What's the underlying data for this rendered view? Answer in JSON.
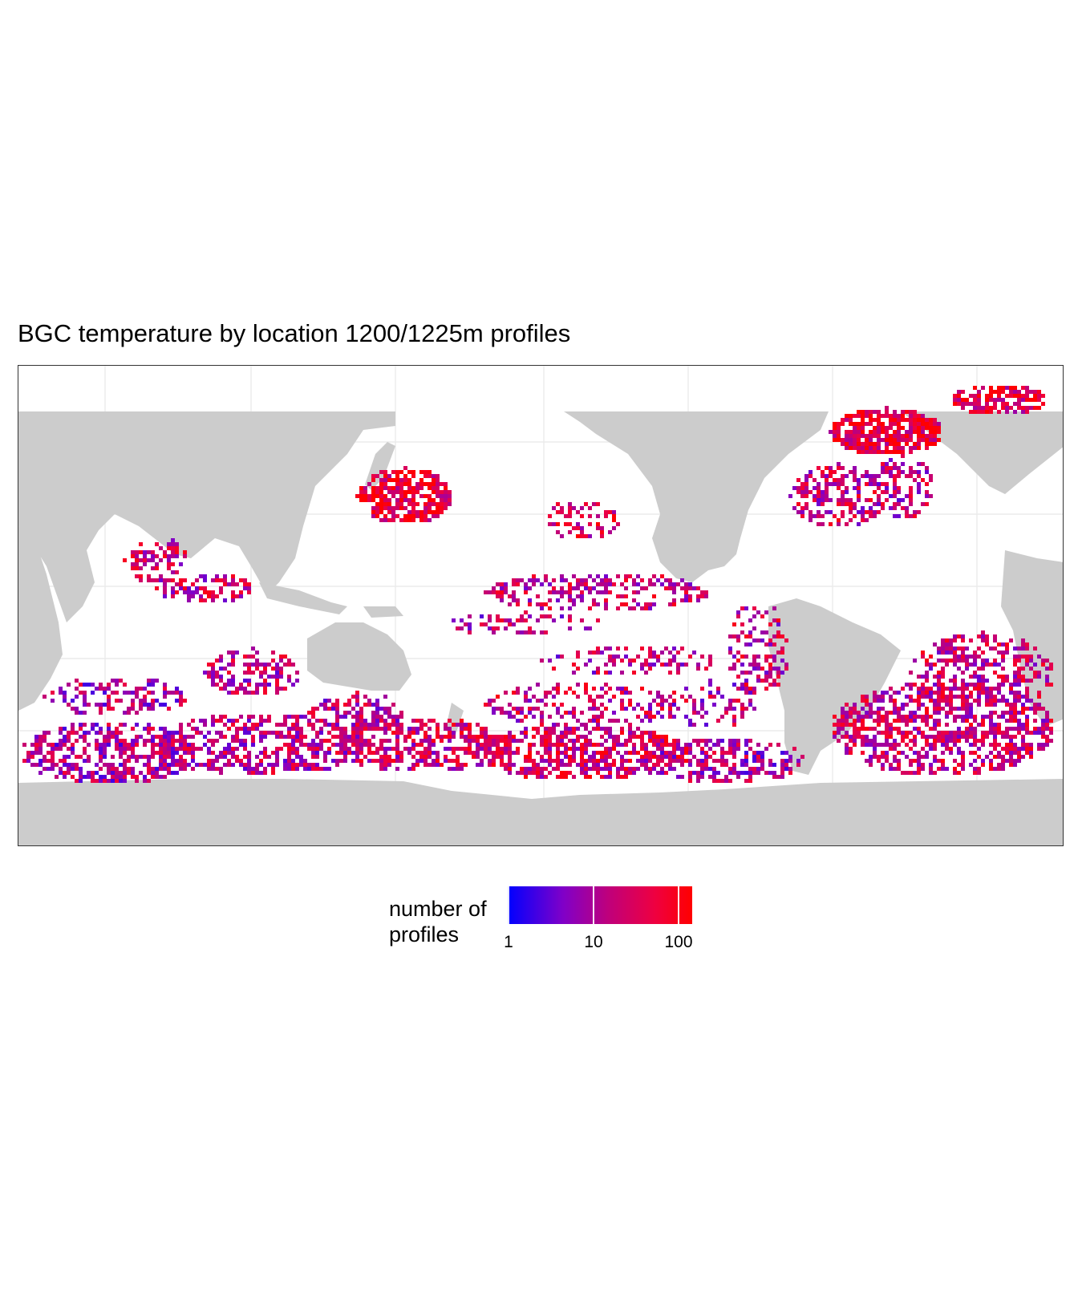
{
  "title": "BGC temperature by location 1200/1225m profiles",
  "legend": {
    "title_line1": "number of",
    "title_line2": "profiles",
    "scale": "log10",
    "ticks": [
      {
        "label": "1",
        "value": 1
      },
      {
        "label": "10",
        "value": 10
      },
      {
        "label": "100",
        "value": 100
      }
    ],
    "range": [
      1,
      130
    ],
    "color_low": "#0000ff",
    "color_mid": "#b4007f",
    "color_high": "#ff0000"
  },
  "colors": {
    "land": "#cccccc",
    "ocean": "#ffffff",
    "grid": "#ebebeb",
    "panel_border": "#333333"
  },
  "map": {
    "projection": "equirectangular, centred on 20°E (0–360 longitude wrapped)",
    "grid": true,
    "features": "global ocean 1°-ish bins coloured by profile count; land masses in grey"
  }
}
